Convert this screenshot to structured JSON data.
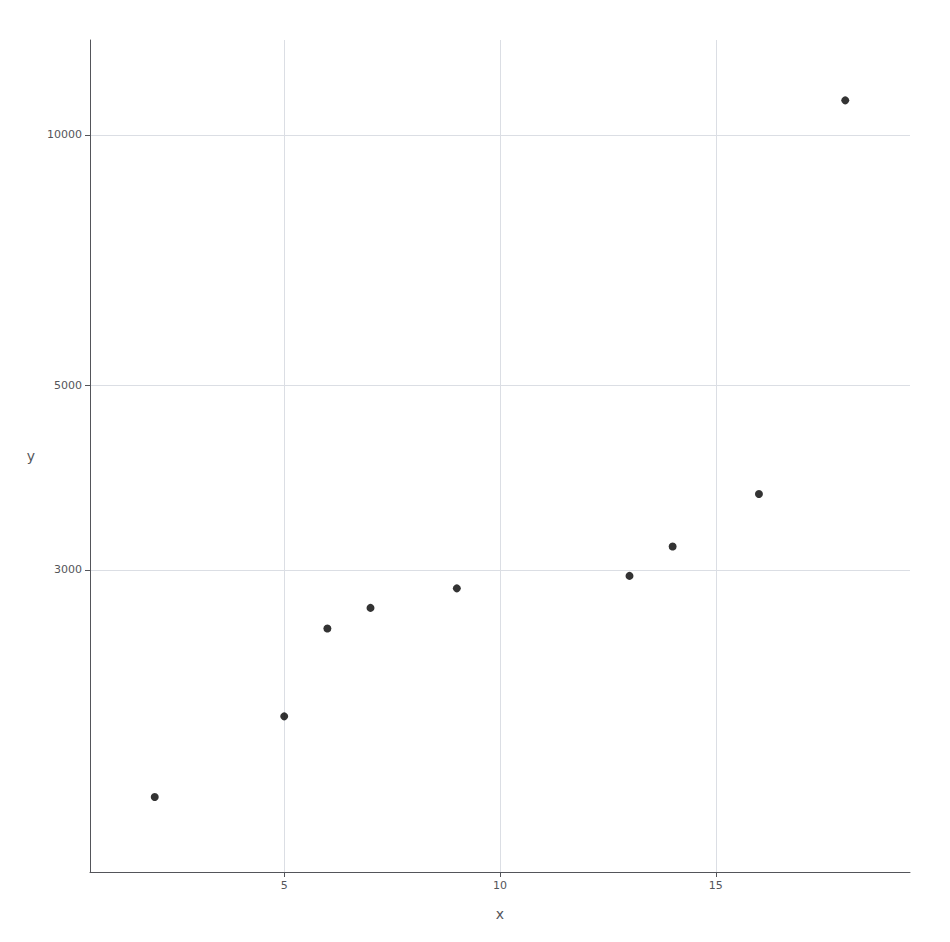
{
  "chart_data": {
    "type": "scatter",
    "x": [
      2,
      5,
      6,
      7,
      9,
      13,
      14,
      16,
      18
    ],
    "y": [
      1600,
      2000,
      2550,
      2700,
      2850,
      2950,
      3200,
      3700,
      11000
    ],
    "color": "#000000",
    "marker": "circle",
    "xlabel": "x",
    "ylabel": "y",
    "xlim": [
      0.5,
      19.5
    ],
    "ylim": [
      1300,
      13000
    ],
    "xticks": [
      5,
      10,
      15
    ],
    "yticks": [
      3000,
      5000,
      10000
    ],
    "log": "y",
    "grid": true
  }
}
